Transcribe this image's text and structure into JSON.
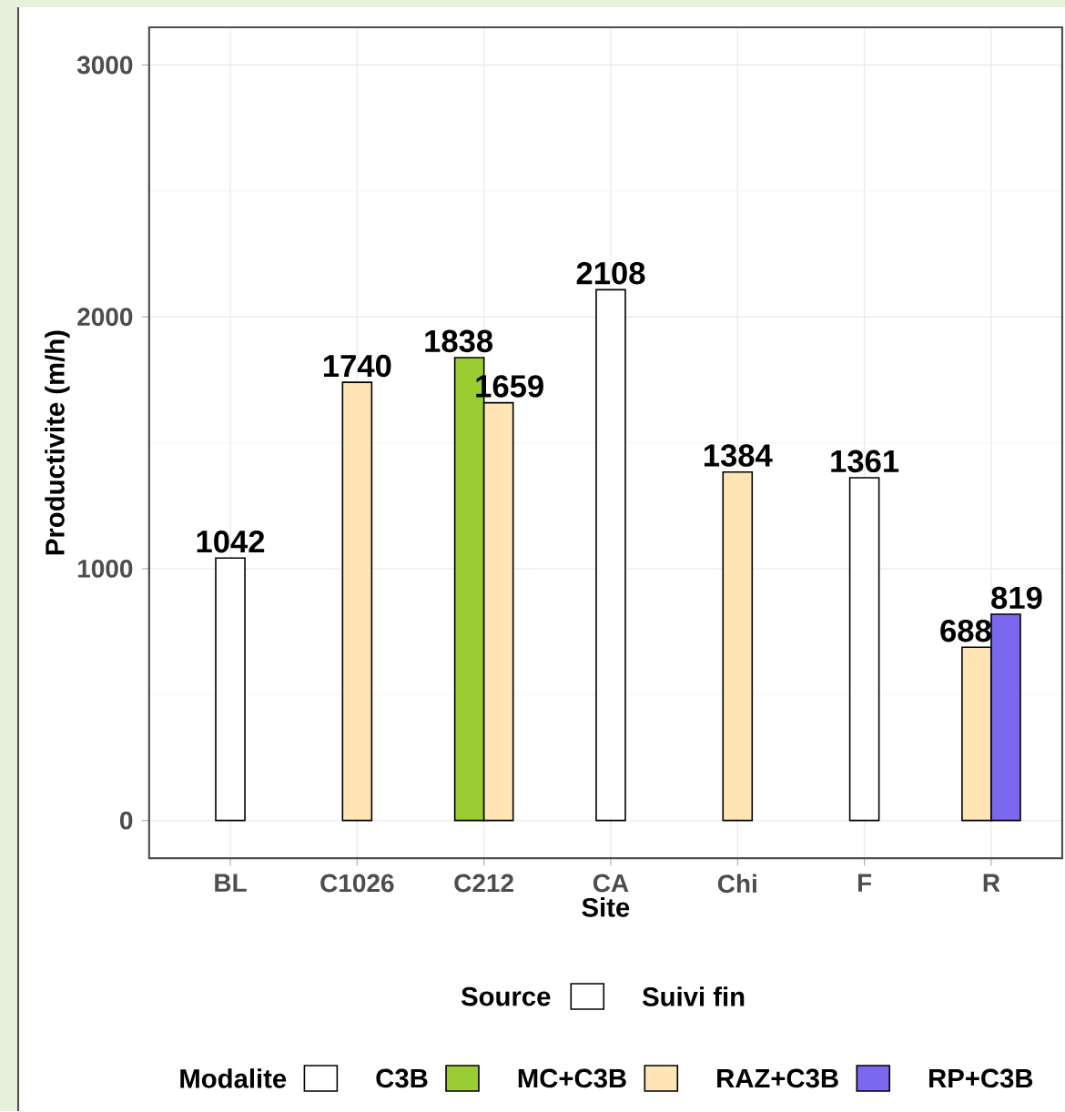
{
  "chart_data": {
    "type": "bar",
    "xlabel": "Site",
    "ylabel": "Productivite (m/h)",
    "categories": [
      "BL",
      "C1026",
      "C212",
      "CA",
      "Chi",
      "F",
      "R"
    ],
    "series": [
      {
        "name": "C3B",
        "color": "#ffffff",
        "values": [
          1042,
          null,
          null,
          2108,
          null,
          1361,
          null
        ]
      },
      {
        "name": "MC+C3B",
        "color": "#9acd32",
        "values": [
          null,
          null,
          1838,
          null,
          null,
          null,
          null
        ]
      },
      {
        "name": "RAZ+C3B",
        "color": "#ffe4b5",
        "values": [
          null,
          1740,
          1659,
          null,
          1384,
          null,
          688
        ]
      },
      {
        "name": "RP+C3B",
        "color": "#7b68ee",
        "values": [
          null,
          null,
          null,
          null,
          null,
          null,
          819
        ]
      }
    ],
    "ylim": [
      -150,
      3150
    ],
    "yticks": [
      0,
      1000,
      2000,
      3000
    ],
    "grid": true,
    "data_labels": true,
    "legend": "bottom",
    "legend_title": "Modalite",
    "annotations": [
      "Source",
      "Suivi fin"
    ]
  }
}
